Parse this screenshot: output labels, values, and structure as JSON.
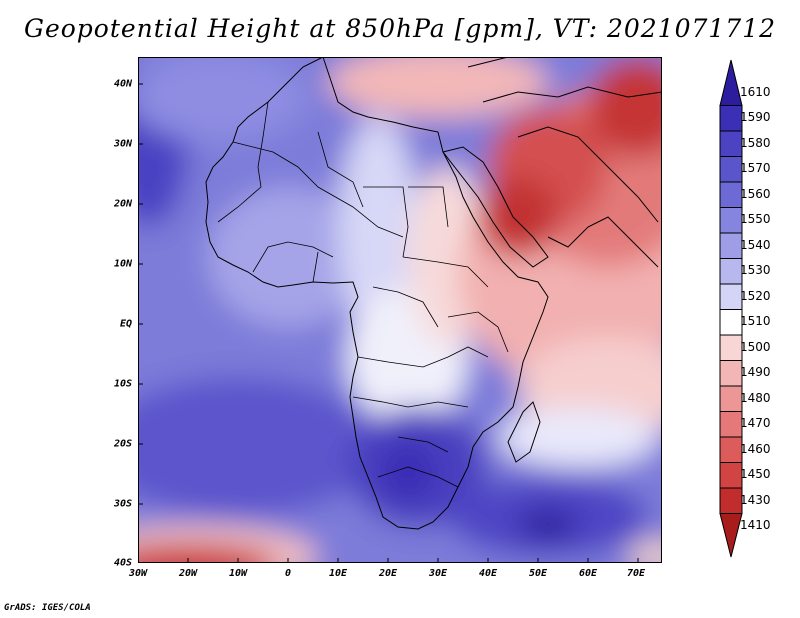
{
  "title": "Geopotential Height at 850hPa [gpm], VT: 2021071712",
  "footer": "GrADS: IGES/COLA",
  "map": {
    "variable": "Geopotential Height at 850hPa",
    "units": "gpm",
    "valid_time": "2021071712",
    "region": "Africa",
    "lat_labels": [
      "40N",
      "30N",
      "20N",
      "10N",
      "EQ",
      "10S",
      "20S",
      "30S",
      "40S"
    ],
    "lon_labels": [
      "30W",
      "20W",
      "10W",
      "0",
      "10E",
      "20E",
      "30E",
      "40E",
      "50E",
      "60E",
      "70E"
    ],
    "colors": {
      "high": "#4433cc",
      "mid": "#ffffff",
      "low": "#bb2222"
    }
  },
  "colorbar": {
    "levels": [
      "1610",
      "1590",
      "1580",
      "1570",
      "1560",
      "1550",
      "1540",
      "1530",
      "1520",
      "1510",
      "1500",
      "1490",
      "1480",
      "1470",
      "1460",
      "1450",
      "1430",
      "1410"
    ],
    "colors": [
      "#2b1d9e",
      "#3a2fb5",
      "#4b43c2",
      "#5b55cc",
      "#6d6ad5",
      "#8584de",
      "#9e9de6",
      "#b8b8ee",
      "#d4d4f6",
      "#ffffff",
      "#f8d6d6",
      "#f2b6b6",
      "#ec9696",
      "#e57878",
      "#dc5c5c",
      "#d24444",
      "#c12d2d",
      "#a81c1c"
    ]
  }
}
